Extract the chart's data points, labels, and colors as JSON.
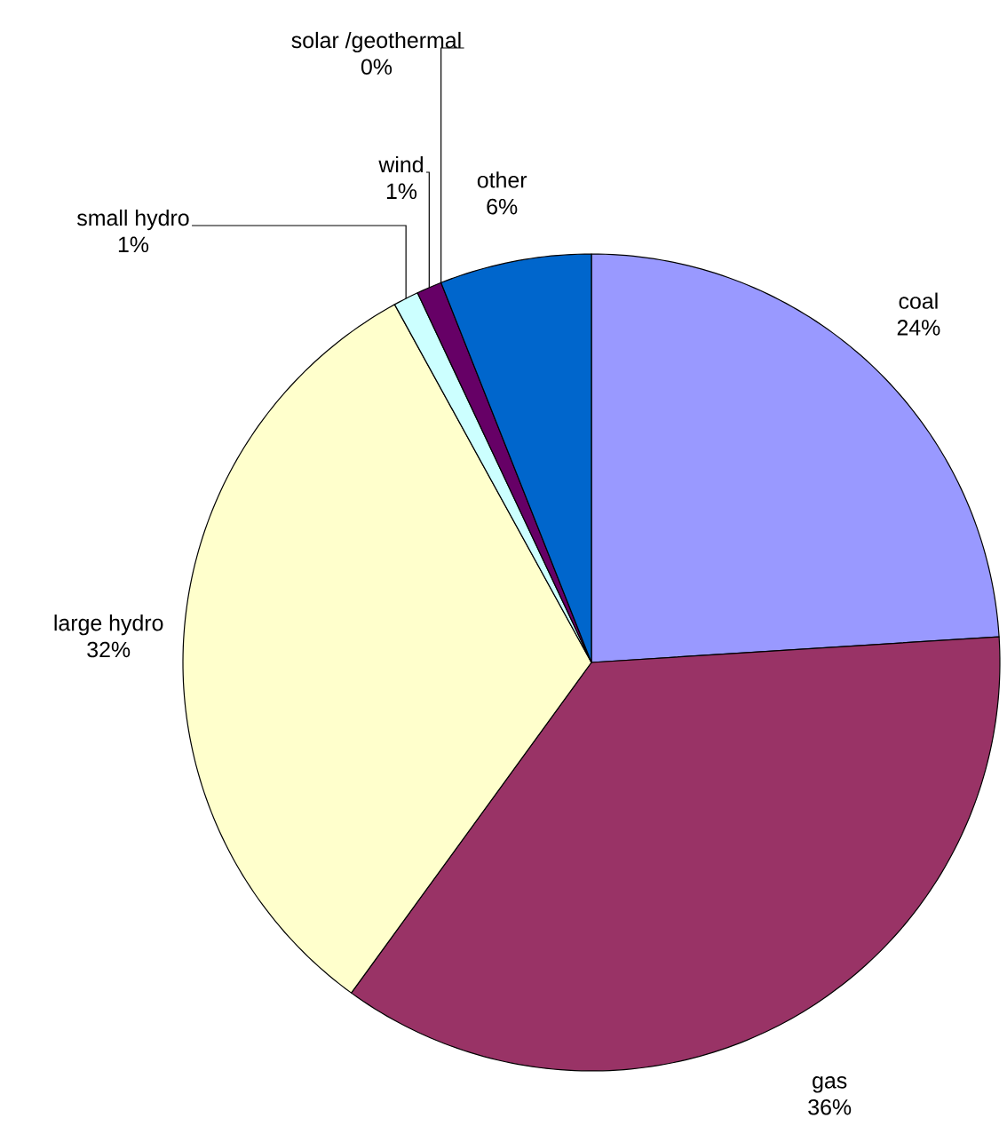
{
  "chart_data": {
    "type": "pie",
    "categories": [
      "coal",
      "gas",
      "large hydro",
      "small hydro",
      "wind",
      "solar /geothermal",
      "other"
    ],
    "values": [
      24,
      36,
      32,
      1,
      1,
      0,
      6
    ],
    "value_labels": [
      "24%",
      "36%",
      "32%",
      "1%",
      "1%",
      "0%",
      "6%"
    ],
    "colors": [
      "#9999ff",
      "#993366",
      "#ffffcc",
      "#ccffff",
      "#660066",
      "#ff8080",
      "#0066cc"
    ]
  }
}
